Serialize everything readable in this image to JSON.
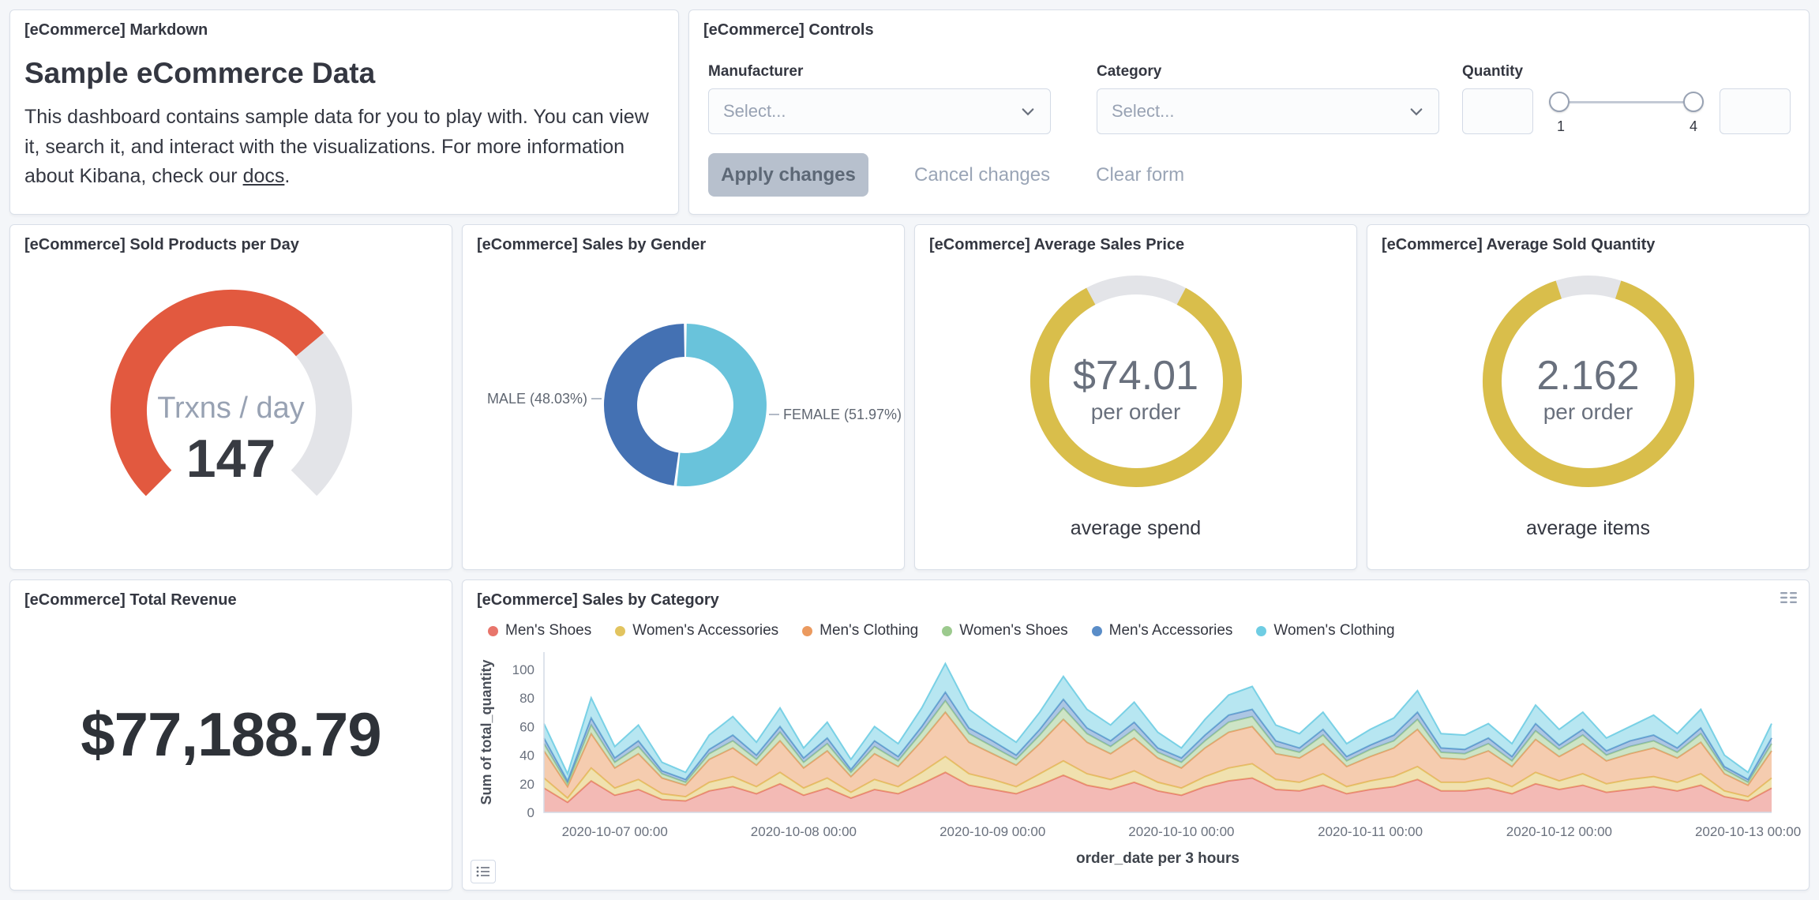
{
  "markdown": {
    "title": "[eCommerce] Markdown",
    "heading": "Sample eCommerce Data",
    "body_1": "This dashboard contains sample data for you to play with. You can view it, search it, and interact with the visualizations. For more information about Kibana, check our ",
    "link_text": "docs",
    "body_2": "."
  },
  "controls": {
    "title": "[eCommerce] Controls",
    "manufacturer": {
      "label": "Manufacturer",
      "placeholder": "Select..."
    },
    "category": {
      "label": "Category",
      "placeholder": "Select..."
    },
    "quantity": {
      "label": "Quantity",
      "min_value": "1",
      "max_value": "4"
    },
    "buttons": {
      "apply": "Apply changes",
      "cancel": "Cancel changes",
      "clear": "Clear form"
    }
  },
  "charts": {
    "gauge": {
      "panel_title": "[eCommerce] Sold Products per Day",
      "type": "gauge",
      "label": "Trxns / day",
      "value": "147",
      "fraction": 0.685,
      "color": "#E2593F",
      "track_color": "#E3E4E8"
    },
    "gender": {
      "panel_title": "[eCommerce] Sales by Gender",
      "type": "pie",
      "slices": [
        {
          "name": "FEMALE",
          "label": "FEMALE (51.97%)",
          "pct": 51.97,
          "color": "#69C3DB",
          "side": "right",
          "label_dy": 12
        },
        {
          "name": "MALE",
          "label": "MALE (48.03%)",
          "pct": 48.03,
          "color": "#4471B3",
          "side": "left",
          "label_dy": -8
        }
      ]
    },
    "price_goal": {
      "panel_title": "[eCommerce] Average Sales Price",
      "type": "goal",
      "value": "$74.01",
      "sub_label": "per order",
      "caption": "average spend",
      "color": "#D9BE4B",
      "track_color": "#E3E4E8",
      "arc_start": 28,
      "arc_end": 332
    },
    "qty_goal": {
      "panel_title": "[eCommerce] Average Sold Quantity",
      "type": "goal",
      "value": "2.162",
      "sub_label": "per order",
      "caption": "average items",
      "color": "#D9BE4B",
      "track_color": "#E3E4E8",
      "arc_start": 18,
      "arc_end": 342
    },
    "revenue": {
      "panel_title": "[eCommerce] Total Revenue",
      "type": "metric",
      "value": "$77,188.79"
    },
    "area": {
      "panel_title": "[eCommerce] Sales by Category",
      "type": "area",
      "stacked": true,
      "ylabel": "Sum of total_quantity",
      "xlabel": "order_date per 3 hours",
      "ymax": 112,
      "yticks": [
        0,
        20,
        40,
        60,
        80,
        100
      ],
      "xticks": [
        {
          "i": 3,
          "label": "2020-10-07 00:00"
        },
        {
          "i": 11,
          "label": "2020-10-08 00:00"
        },
        {
          "i": 19,
          "label": "2020-10-09 00:00"
        },
        {
          "i": 27,
          "label": "2020-10-10 00:00"
        },
        {
          "i": 35,
          "label": "2020-10-11 00:00"
        },
        {
          "i": 43,
          "label": "2020-10-12 00:00"
        },
        {
          "i": 51,
          "label": "2020-10-13 00:00"
        }
      ],
      "series": [
        {
          "name": "Men's Shoes",
          "color": "#E8756B",
          "values": [
            17,
            7,
            22,
            12,
            16,
            9,
            8,
            15,
            18,
            13,
            20,
            12,
            17,
            10,
            16,
            13,
            20,
            28,
            19,
            16,
            13,
            19,
            26,
            19,
            16,
            21,
            15,
            12,
            18,
            22,
            24,
            16,
            15,
            19,
            13,
            16,
            18,
            23,
            15,
            15,
            17,
            13,
            20,
            16,
            19,
            14,
            16,
            18,
            15,
            19,
            11,
            8,
            17
          ]
        },
        {
          "name": "Women's Accessories",
          "color": "#E2C45F",
          "values": [
            7,
            3,
            9,
            5,
            7,
            4,
            3,
            6,
            7,
            5,
            8,
            5,
            7,
            4,
            7,
            5,
            8,
            11,
            8,
            7,
            5,
            8,
            10,
            8,
            7,
            8,
            6,
            5,
            7,
            9,
            10,
            7,
            6,
            8,
            5,
            6,
            7,
            9,
            6,
            6,
            7,
            5,
            8,
            6,
            8,
            6,
            7,
            7,
            6,
            8,
            4,
            3,
            7
          ]
        },
        {
          "name": "Men's Clothing",
          "color": "#EB9A5F",
          "values": [
            19,
            8,
            24,
            14,
            18,
            11,
            8,
            16,
            20,
            15,
            22,
            14,
            19,
            11,
            18,
            14,
            22,
            31,
            22,
            18,
            15,
            21,
            29,
            22,
            18,
            23,
            17,
            14,
            20,
            25,
            26,
            18,
            17,
            21,
            14,
            17,
            20,
            26,
            17,
            16,
            19,
            14,
            23,
            17,
            21,
            16,
            18,
            20,
            17,
            22,
            12,
            8,
            19
          ]
        },
        {
          "name": "Women's Shoes",
          "color": "#9CCA8E",
          "values": [
            5,
            2,
            6,
            4,
            5,
            3,
            2,
            4,
            5,
            4,
            6,
            4,
            5,
            3,
            5,
            4,
            6,
            8,
            6,
            5,
            4,
            6,
            8,
            6,
            5,
            6,
            4,
            4,
            5,
            7,
            7,
            5,
            4,
            6,
            4,
            5,
            5,
            7,
            4,
            4,
            5,
            4,
            6,
            5,
            6,
            4,
            5,
            5,
            4,
            6,
            3,
            2,
            5
          ]
        },
        {
          "name": "Men's Accessories",
          "color": "#5A8DC8",
          "values": [
            4,
            2,
            5,
            3,
            4,
            2,
            2,
            3,
            4,
            3,
            4,
            3,
            4,
            2,
            4,
            3,
            4,
            6,
            4,
            4,
            3,
            4,
            6,
            4,
            4,
            5,
            3,
            3,
            4,
            5,
            5,
            4,
            3,
            4,
            3,
            3,
            4,
            5,
            3,
            3,
            4,
            3,
            5,
            3,
            4,
            3,
            4,
            4,
            3,
            4,
            2,
            2,
            4
          ]
        },
        {
          "name": "Women's Clothing",
          "color": "#6FCDE3",
          "values": [
            10,
            5,
            14,
            8,
            11,
            6,
            5,
            10,
            13,
            9,
            13,
            7,
            11,
            7,
            10,
            9,
            13,
            20,
            13,
            10,
            9,
            12,
            16,
            13,
            11,
            14,
            11,
            7,
            11,
            14,
            16,
            11,
            10,
            12,
            9,
            11,
            12,
            15,
            10,
            10,
            10,
            9,
            13,
            11,
            12,
            9,
            10,
            14,
            10,
            13,
            8,
            5,
            10
          ]
        }
      ]
    }
  }
}
